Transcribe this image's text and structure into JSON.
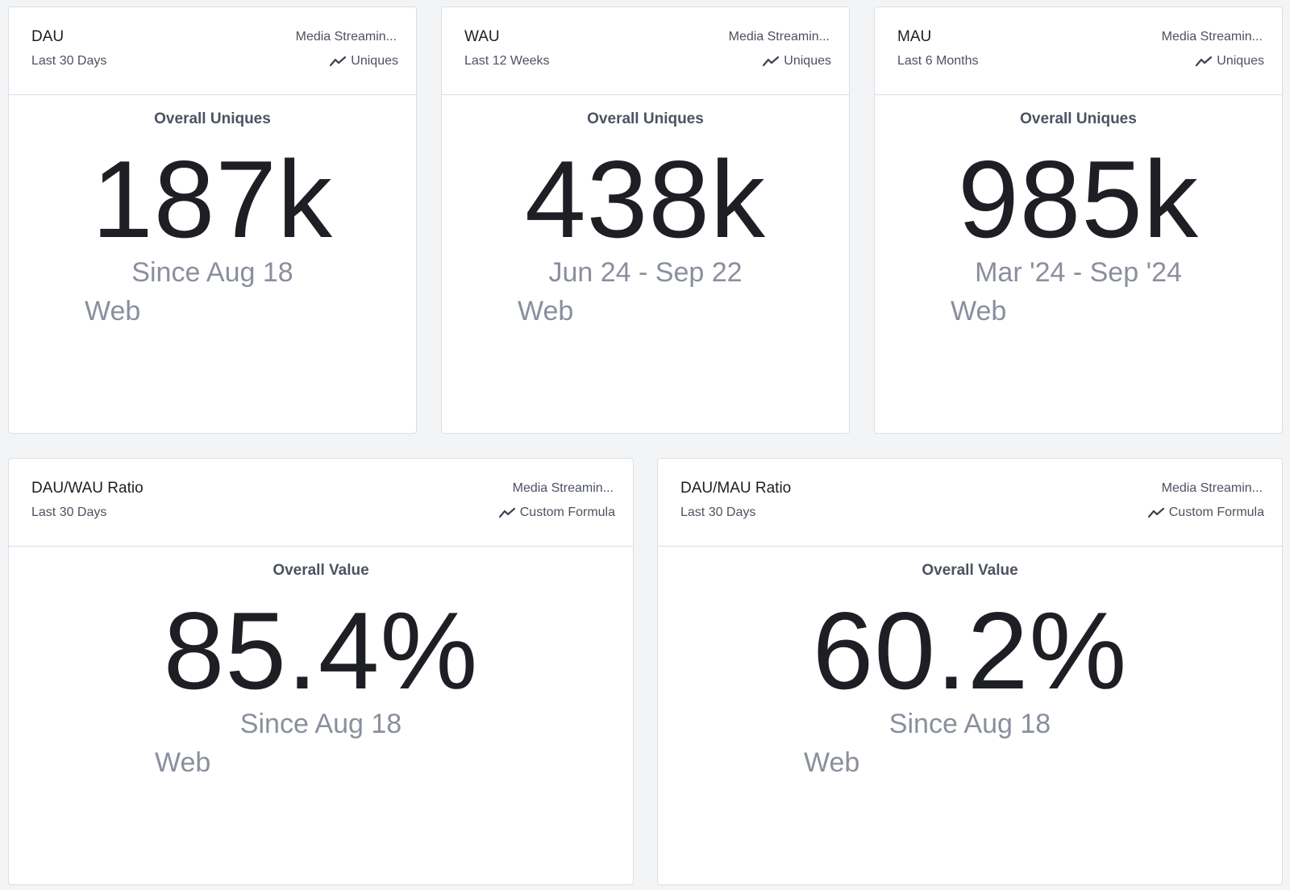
{
  "cards": [
    {
      "title": "DAU",
      "range": "Last 30 Days",
      "source": "Media Streamin...",
      "metric": "Uniques",
      "overall_label": "Overall Uniques",
      "value": "187k",
      "period": "Since Aug 18",
      "platform": "Web"
    },
    {
      "title": "WAU",
      "range": "Last 12 Weeks",
      "source": "Media Streamin...",
      "metric": "Uniques",
      "overall_label": "Overall Uniques",
      "value": "438k",
      "period": "Jun 24 - Sep 22",
      "platform": "Web"
    },
    {
      "title": "MAU",
      "range": "Last 6 Months",
      "source": "Media Streamin...",
      "metric": "Uniques",
      "overall_label": "Overall Uniques",
      "value": "985k",
      "period": "Mar '24 - Sep '24",
      "platform": "Web"
    },
    {
      "title": "DAU/WAU Ratio",
      "range": "Last 30 Days",
      "source": "Media Streamin...",
      "metric": "Custom Formula",
      "overall_label": "Overall Value",
      "value": "85.4%",
      "period": "Since Aug 18",
      "platform": "Web"
    },
    {
      "title": "DAU/MAU Ratio",
      "range": "Last 30 Days",
      "source": "Media Streamin...",
      "metric": "Custom Formula",
      "overall_label": "Overall Value",
      "value": "60.2%",
      "period": "Since Aug 18",
      "platform": "Web"
    }
  ],
  "icons": {
    "metric": "trend-line-icon"
  }
}
